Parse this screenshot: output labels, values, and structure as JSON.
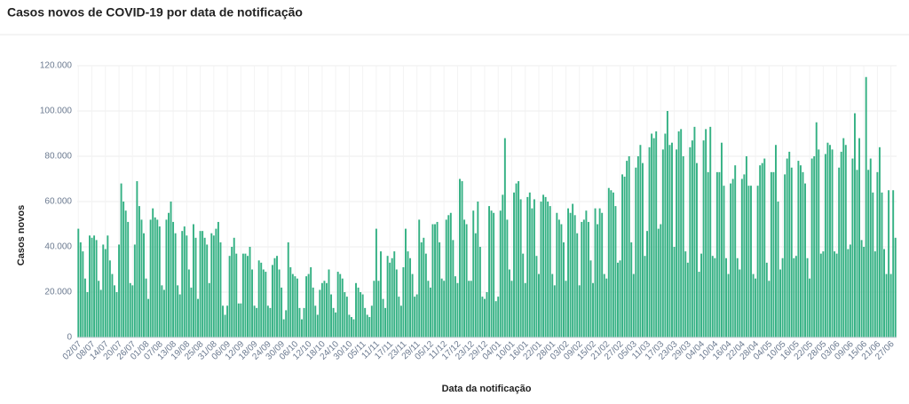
{
  "chart_data": {
    "type": "bar",
    "title": "Casos novos de COVID-19 por data de notificação",
    "ylabel": "Casos novos",
    "xlabel": "Data da notificação",
    "color": "#35b184",
    "grid": true,
    "ylim": [
      0,
      120000
    ],
    "yticks": [
      0,
      {
        "value": 20000,
        "label": "20.000"
      },
      {
        "value": 40000,
        "label": "40.000"
      },
      {
        "value": 60000,
        "label": "60.000"
      },
      {
        "value": 80000,
        "label": "80.000"
      },
      {
        "value": 100000,
        "label": "100.000"
      },
      {
        "value": 120000,
        "label": "120.000"
      }
    ],
    "categories": [
      "02/07",
      null,
      null,
      null,
      null,
      null,
      "08/07",
      null,
      null,
      null,
      null,
      null,
      "14/07",
      null,
      null,
      null,
      null,
      null,
      "20/07",
      null,
      null,
      null,
      null,
      null,
      "26/07",
      null,
      null,
      null,
      null,
      null,
      "01/08",
      null,
      null,
      null,
      null,
      null,
      "07/08",
      null,
      null,
      null,
      null,
      null,
      "13/08",
      null,
      null,
      null,
      null,
      null,
      "19/08",
      null,
      null,
      null,
      null,
      null,
      "25/08",
      null,
      null,
      null,
      null,
      null,
      "31/08",
      null,
      null,
      null,
      null,
      null,
      "06/09",
      null,
      null,
      null,
      null,
      null,
      "12/09",
      null,
      null,
      null,
      null,
      null,
      "18/09",
      null,
      null,
      null,
      null,
      null,
      "24/09",
      null,
      null,
      null,
      null,
      null,
      "30/09",
      null,
      null,
      null,
      null,
      null,
      "06/10",
      null,
      null,
      null,
      null,
      null,
      "12/10",
      null,
      null,
      null,
      null,
      null,
      "18/10",
      null,
      null,
      null,
      null,
      null,
      "24/10",
      null,
      null,
      null,
      null,
      null,
      "30/10",
      null,
      null,
      null,
      null,
      null,
      "05/11",
      null,
      null,
      null,
      null,
      null,
      "11/11",
      null,
      null,
      null,
      null,
      null,
      "17/11",
      null,
      null,
      null,
      null,
      null,
      "23/11",
      null,
      null,
      null,
      null,
      null,
      "29/11",
      null,
      null,
      null,
      null,
      null,
      "05/12",
      null,
      null,
      null,
      null,
      null,
      "11/12",
      null,
      null,
      null,
      null,
      null,
      "17/12",
      null,
      null,
      null,
      null,
      null,
      "23/12",
      null,
      null,
      null,
      null,
      null,
      "29/12",
      null,
      null,
      null,
      null,
      null,
      "04/01",
      null,
      null,
      null,
      null,
      null,
      "10/01",
      null,
      null,
      null,
      null,
      null,
      "16/01",
      null,
      null,
      null,
      null,
      null,
      "22/01",
      null,
      null,
      null,
      null,
      null,
      "28/01",
      null,
      null,
      null,
      null,
      null,
      "03/02",
      null,
      null,
      null,
      null,
      null,
      "09/02",
      null,
      null,
      null,
      null,
      null,
      "15/02",
      null,
      null,
      null,
      null,
      null,
      "21/02",
      null,
      null,
      null,
      null,
      null,
      "27/02",
      null,
      null,
      null,
      null,
      null,
      "05/03",
      null,
      null,
      null,
      null,
      null,
      "11/03",
      null,
      null,
      null,
      null,
      null,
      "17/03",
      null,
      null,
      null,
      null,
      null,
      "23/03",
      null,
      null,
      null,
      null,
      null,
      "29/03",
      null,
      null,
      null,
      null,
      null,
      "04/04",
      null,
      null,
      null,
      null,
      null,
      "10/04",
      null,
      null,
      null,
      null,
      null,
      "16/04",
      null,
      null,
      null,
      null,
      null,
      "22/04",
      null,
      null,
      null,
      null,
      null,
      "28/04",
      null,
      null,
      null,
      null,
      null,
      "04/05",
      null,
      null,
      null,
      null,
      null,
      "10/05",
      null,
      null,
      null,
      null,
      null,
      "16/05",
      null,
      null,
      null,
      null,
      null,
      "22/05",
      null,
      null,
      null,
      null,
      null,
      "28/05",
      null,
      null,
      null,
      null,
      null,
      "03/06",
      null,
      null,
      null,
      null,
      null,
      "09/06",
      null,
      null,
      null,
      null,
      null,
      "15/06",
      null,
      null,
      null,
      null,
      null,
      "21/06",
      null,
      null,
      null,
      null,
      null,
      "27/06",
      null,
      null
    ],
    "values": [
      48000,
      42000,
      38000,
      26000,
      20000,
      45000,
      44000,
      45000,
      43000,
      25000,
      21000,
      41000,
      39000,
      45000,
      34000,
      28000,
      23000,
      20000,
      41000,
      68000,
      60000,
      56000,
      51000,
      24000,
      23000,
      41000,
      69000,
      58000,
      52000,
      46000,
      26000,
      17000,
      52000,
      57000,
      53000,
      52000,
      49000,
      23000,
      21000,
      52000,
      55000,
      60000,
      51000,
      46000,
      23000,
      19000,
      47000,
      49000,
      45000,
      30000,
      22000,
      50000,
      44000,
      17000,
      47000,
      47000,
      44000,
      41000,
      24000,
      46000,
      45000,
      48000,
      51000,
      42000,
      14000,
      10000,
      14000,
      36000,
      40000,
      44000,
      37000,
      15000,
      15000,
      37000,
      37000,
      36000,
      40000,
      30000,
      14000,
      13000,
      34000,
      33000,
      30000,
      29000,
      14000,
      13000,
      32000,
      35000,
      36000,
      30000,
      22000,
      8000,
      12000,
      42000,
      31000,
      28000,
      27000,
      26000,
      13000,
      8000,
      13000,
      27000,
      28000,
      31000,
      22000,
      14000,
      10000,
      21000,
      24000,
      25000,
      24000,
      30000,
      19000,
      13000,
      11000,
      29000,
      28000,
      26000,
      20000,
      18000,
      10000,
      9000,
      8000,
      24000,
      22000,
      20000,
      19000,
      13000,
      10000,
      9000,
      14000,
      25000,
      48000,
      25000,
      38000,
      17000,
      13000,
      36000,
      33000,
      35000,
      38000,
      30000,
      18000,
      14000,
      31000,
      48000,
      38000,
      35000,
      28000,
      18000,
      19000,
      52000,
      42000,
      44000,
      37000,
      25000,
      22000,
      50000,
      50000,
      51000,
      42000,
      26000,
      25000,
      52000,
      54000,
      55000,
      43000,
      27000,
      24000,
      70000,
      69000,
      52000,
      50000,
      25000,
      25000,
      56000,
      46000,
      60000,
      40000,
      18000,
      17000,
      20000,
      58000,
      56000,
      55000,
      16000,
      18000,
      56000,
      63000,
      88000,
      52000,
      30000,
      25000,
      64000,
      68000,
      69000,
      61000,
      37000,
      24000,
      62000,
      64000,
      57000,
      61000,
      36000,
      28000,
      60000,
      63000,
      62000,
      60000,
      58000,
      28000,
      23000,
      55000,
      52000,
      50000,
      42000,
      25000,
      57000,
      55000,
      59000,
      54000,
      46000,
      23000,
      51000,
      52000,
      56000,
      51000,
      34000,
      24000,
      57000,
      50000,
      57000,
      55000,
      28000,
      26000,
      66000,
      65000,
      64000,
      58000,
      33000,
      34000,
      72000,
      71000,
      78000,
      80000,
      42000,
      28000,
      75000,
      80000,
      85000,
      77000,
      36000,
      47000,
      84000,
      90000,
      88000,
      91000,
      48000,
      50000,
      83000,
      90000,
      100000,
      85000,
      86000,
      40000,
      83000,
      91000,
      92000,
      80000,
      38000,
      33000,
      84000,
      87000,
      93000,
      77000,
      29000,
      37000,
      87000,
      92000,
      73000,
      93000,
      36000,
      35000,
      73000,
      73000,
      86000,
      67000,
      35000,
      28000,
      68000,
      70000,
      76000,
      35000,
      30000,
      70000,
      72000,
      80000,
      67000,
      67000,
      28000,
      26000,
      67000,
      76000,
      77000,
      79000,
      33000,
      25000,
      73000,
      73000,
      85000,
      60000,
      30000,
      35000,
      72000,
      79000,
      82000,
      75000,
      35000,
      36000,
      78000,
      76000,
      73000,
      68000,
      35000,
      26000,
      79000,
      80000,
      95000,
      83000,
      37000,
      38000,
      81000,
      86000,
      85000,
      83000,
      38000,
      37000,
      75000,
      82000,
      88000,
      85000,
      39000,
      41000,
      79000,
      99000,
      74000,
      88000,
      43000,
      40000,
      115000,
      74000,
      79000,
      64000,
      38000,
      73000,
      84000,
      64000,
      39000,
      28000,
      65000,
      28000,
      65000,
      44000
    ]
  }
}
